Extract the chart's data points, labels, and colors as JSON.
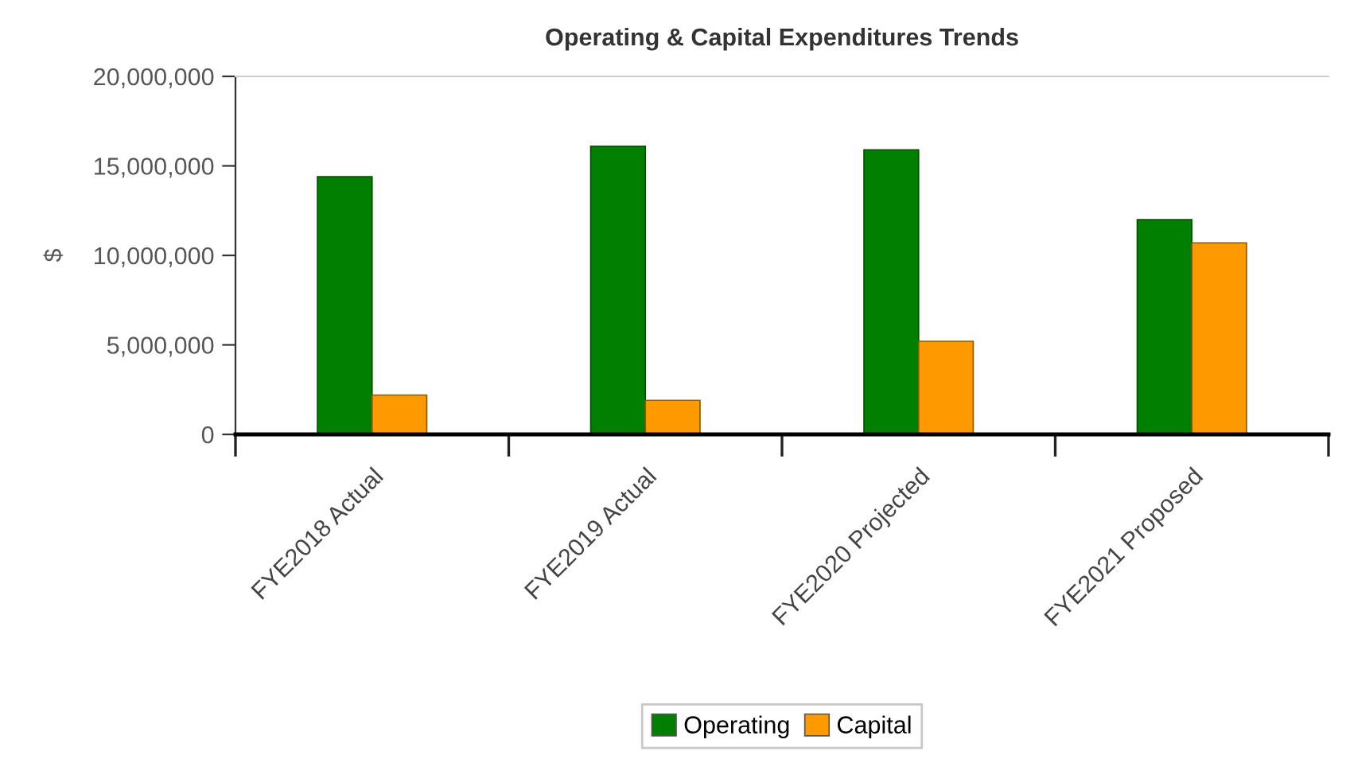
{
  "chart_data": {
    "type": "bar",
    "title": "Operating & Capital Expenditures Trends",
    "ylabel": "$",
    "categories": [
      "FYE2018 Actual",
      "FYE2019 Actual",
      "FYE2020 Projected",
      "FYE2021 Proposed"
    ],
    "series": [
      {
        "name": "Operating",
        "color": "#007f00",
        "values": [
          14400000,
          16100000,
          15900000,
          12000000
        ]
      },
      {
        "name": "Capital",
        "color": "#ff9900",
        "values": [
          2200000,
          1900000,
          5200000,
          10700000
        ]
      }
    ],
    "ylim": [
      0,
      20000000
    ],
    "yticks": [
      {
        "value": 0,
        "label": "0"
      },
      {
        "value": 5000000,
        "label": "5,000,000"
      },
      {
        "value": 10000000,
        "label": "10,000,000"
      },
      {
        "value": 15000000,
        "label": "15,000,000"
      },
      {
        "value": 20000000,
        "label": "20,000,000"
      }
    ],
    "grid": false,
    "legend": "bottom"
  }
}
